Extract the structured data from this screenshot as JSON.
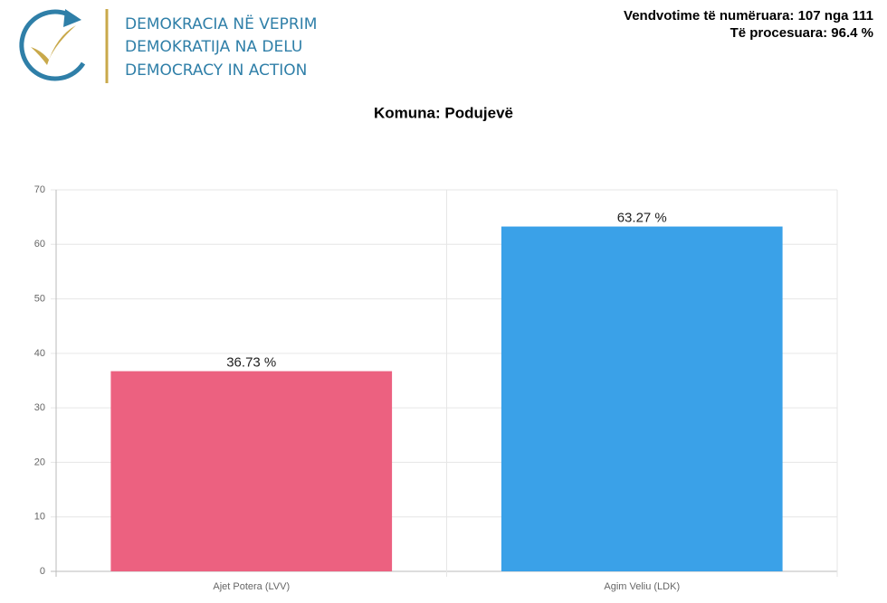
{
  "header": {
    "logo_lines": [
      "DEMOKRACIA NË VEPRIM",
      "DEMOKRATIJA NA DELU",
      "DEMOCRACY IN ACTION"
    ],
    "stats": [
      "Vendvotime të numëruara: 107 nga 111",
      "Të procesuara: 96.4 %"
    ]
  },
  "chart_data": {
    "type": "bar",
    "title": "Komuna: Podujevë",
    "categories": [
      "Ajet Potera (LVV)",
      "Agim Veliu (LDK)"
    ],
    "values": [
      36.73,
      63.27
    ],
    "value_labels": [
      "36.73 %",
      "63.27 %"
    ],
    "colors": [
      "#ec6180",
      "#3aa1e8"
    ],
    "ylim": [
      0,
      70
    ],
    "yticks": [
      0,
      10,
      20,
      30,
      40,
      50,
      60,
      70
    ],
    "grid": true
  }
}
